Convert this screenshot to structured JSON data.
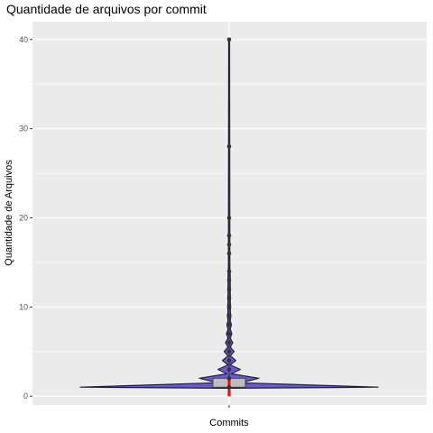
{
  "chart_data": {
    "type": "violin",
    "title": "Quantidade de arquivos por commit",
    "xlabel": "Commits",
    "ylabel": "Quantidade de Arquivos",
    "categories": [
      ""
    ],
    "ylim": [
      -1,
      42
    ],
    "yticks": [
      0,
      10,
      20,
      30,
      40
    ],
    "grid": true,
    "colors": {
      "panel": "#ebebeb",
      "grid": "#ffffff",
      "violin_fill": "#6a5acd",
      "violin_stroke": "#1f1f3a",
      "box_fill": "#bdbdbd",
      "box_stroke": "#333333",
      "median": "#ff0000",
      "points": "#333333"
    },
    "violin_density": [
      {
        "y": 1,
        "width": 1.0
      },
      {
        "y": 2,
        "width": 0.2
      },
      {
        "y": 3,
        "width": 0.075
      },
      {
        "y": 4,
        "width": 0.045
      },
      {
        "y": 5,
        "width": 0.033
      },
      {
        "y": 6,
        "width": 0.024
      },
      {
        "y": 7,
        "width": 0.018
      },
      {
        "y": 8,
        "width": 0.015
      },
      {
        "y": 9,
        "width": 0.012
      },
      {
        "y": 10,
        "width": 0.01
      },
      {
        "y": 11,
        "width": 0.009
      },
      {
        "y": 12,
        "width": 0.008
      },
      {
        "y": 13,
        "width": 0.007
      },
      {
        "y": 14,
        "width": 0.006
      }
    ],
    "box": {
      "q1": 1,
      "median": 1,
      "q3": 2,
      "whisker_low": 1,
      "whisker_high": 40
    },
    "points": [
      1,
      2,
      3,
      4,
      5,
      6,
      7,
      8,
      9,
      10,
      11,
      12,
      13,
      14,
      16,
      17,
      18,
      20,
      28,
      40
    ]
  }
}
